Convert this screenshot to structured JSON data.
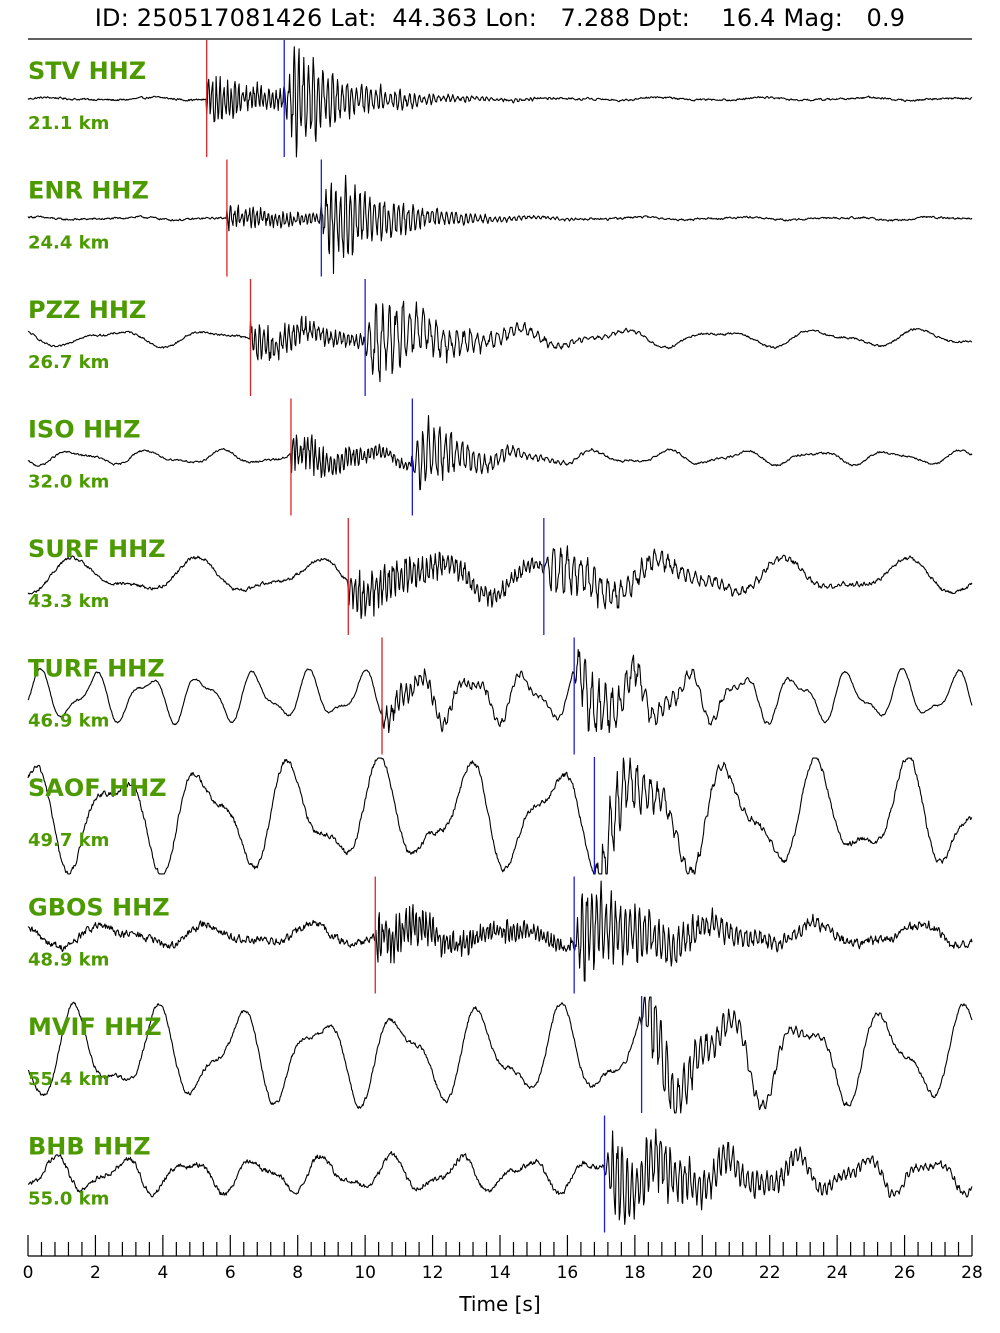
{
  "header": {
    "title": "ID: 250517081426 Lat:  44.363 Lon:   7.288 Dpt:    16.4 Mag:   0.9"
  },
  "chart_data": {
    "type": "line",
    "subtype": "seismogram-record-section",
    "xlabel": "Time [s]",
    "xlim": [
      0,
      28
    ],
    "x_ticks": [
      0,
      2,
      4,
      6,
      8,
      10,
      12,
      14,
      16,
      18,
      20,
      22,
      24,
      26,
      28
    ],
    "x_tick_labels": [
      "0",
      "2",
      "4",
      "6",
      "8",
      "10",
      "12",
      "14",
      "16",
      "18",
      "20",
      "22",
      "24",
      "26",
      "28"
    ],
    "minor_tick_step": 0.4,
    "pick_colors": {
      "P": "#d62728",
      "S": "#1f1fd0"
    },
    "trace_color": "#000000",
    "label_color": "#4c9a00",
    "traces": [
      {
        "station": "STV HHZ",
        "distance": "21.1 km",
        "p_pick": 5.3,
        "s_pick": 7.6,
        "character": {
          "bg_noise": 0.03,
          "bg_wave": 0.02,
          "wave_period": 3.0,
          "p_amp": 0.5,
          "s_amp": 1.0,
          "coda_decay": 2.5,
          "p_freq": 9,
          "s_freq": 7
        }
      },
      {
        "station": "ENR HHZ",
        "distance": "24.4 km",
        "p_pick": 5.9,
        "s_pick": 8.7,
        "character": {
          "bg_noise": 0.03,
          "bg_wave": 0.02,
          "wave_period": 3.0,
          "p_amp": 0.3,
          "s_amp": 1.0,
          "coda_decay": 2.5,
          "p_freq": 9,
          "s_freq": 7
        }
      },
      {
        "station": "PZZ HHZ",
        "distance": "26.7 km",
        "p_pick": 6.6,
        "s_pick": 10.0,
        "character": {
          "bg_noise": 0.03,
          "bg_wave": 0.12,
          "wave_period": 3.0,
          "p_amp": 0.45,
          "s_amp": 0.9,
          "coda_decay": 3.0,
          "p_freq": 8,
          "s_freq": 5
        }
      },
      {
        "station": "ISO HHZ",
        "distance": "32.0 km",
        "p_pick": 7.8,
        "s_pick": 11.4,
        "character": {
          "bg_noise": 0.03,
          "bg_wave": 0.1,
          "wave_period": 2.2,
          "p_amp": 0.55,
          "s_amp": 0.8,
          "coda_decay": 2.0,
          "p_freq": 9,
          "s_freq": 6
        }
      },
      {
        "station": "SURF HHZ",
        "distance": "43.3 km",
        "p_pick": 9.5,
        "s_pick": 15.3,
        "character": {
          "bg_noise": 0.05,
          "bg_wave": 0.25,
          "wave_period": 3.5,
          "p_amp": 0.55,
          "s_amp": 0.6,
          "coda_decay": 4.0,
          "p_freq": 8,
          "s_freq": 5
        }
      },
      {
        "station": "TURF HHZ",
        "distance": "46.9 km",
        "p_pick": 10.5,
        "s_pick": 16.2,
        "character": {
          "bg_noise": 0.03,
          "bg_wave": 0.35,
          "wave_period": 1.6,
          "p_amp": 0.3,
          "s_amp": 0.75,
          "coda_decay": 2.5,
          "p_freq": 7,
          "s_freq": 5
        }
      },
      {
        "station": "SAOF HHZ",
        "distance": "49.7 km",
        "p_pick": null,
        "s_pick": 16.8,
        "character": {
          "bg_noise": 0.08,
          "bg_wave": 0.75,
          "wave_period": 2.6,
          "p_amp": 0.0,
          "s_amp": 0.9,
          "coda_decay": 2.0,
          "p_freq": 7,
          "s_freq": 5
        }
      },
      {
        "station": "GBOS HHZ",
        "distance": "48.9 km",
        "p_pick": 10.3,
        "s_pick": 16.2,
        "character": {
          "bg_noise": 0.12,
          "bg_wave": 0.15,
          "wave_period": 3.0,
          "p_amp": 0.55,
          "s_amp": 1.0,
          "coda_decay": 4.0,
          "p_freq": 10,
          "s_freq": 7
        }
      },
      {
        "station": "MVIF HHZ",
        "distance": "55.4 km",
        "p_pick": null,
        "s_pick": 18.2,
        "character": {
          "bg_noise": 0.06,
          "bg_wave": 0.65,
          "wave_period": 2.4,
          "p_amp": 0.0,
          "s_amp": 0.9,
          "coda_decay": 2.5,
          "p_freq": 7,
          "s_freq": 6
        }
      },
      {
        "station": "BHB HHZ",
        "distance": "55.0 km",
        "p_pick": null,
        "s_pick": 17.1,
        "character": {
          "bg_noise": 0.08,
          "bg_wave": 0.25,
          "wave_period": 2.0,
          "p_amp": 0.35,
          "s_amp": 0.9,
          "coda_decay": 5.0,
          "p_freq": 9,
          "s_freq": 7
        }
      }
    ]
  }
}
